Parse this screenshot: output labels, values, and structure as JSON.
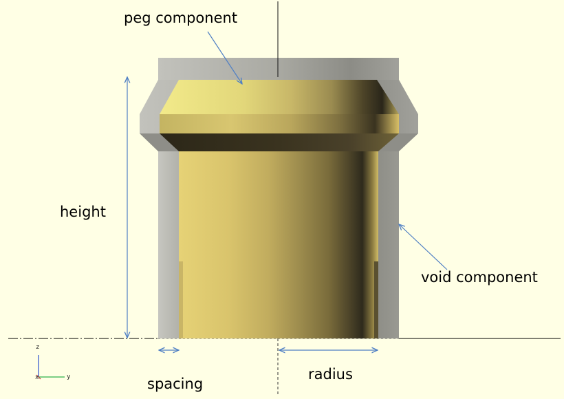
{
  "labels": {
    "peg_component": "peg component",
    "void_component": "void component",
    "height": "height",
    "spacing": "spacing",
    "radius": "radius"
  },
  "axes_widget": {
    "z": "z",
    "x": "x",
    "y": "y"
  },
  "colors": {
    "background": "#ffffe5",
    "void_gray": "#a3a39a",
    "peg_yellow": "#e1cd70",
    "peg_shadow": "#3a3320",
    "arrow_blue": "#4f7fc4",
    "axis_line": "#000000"
  }
}
